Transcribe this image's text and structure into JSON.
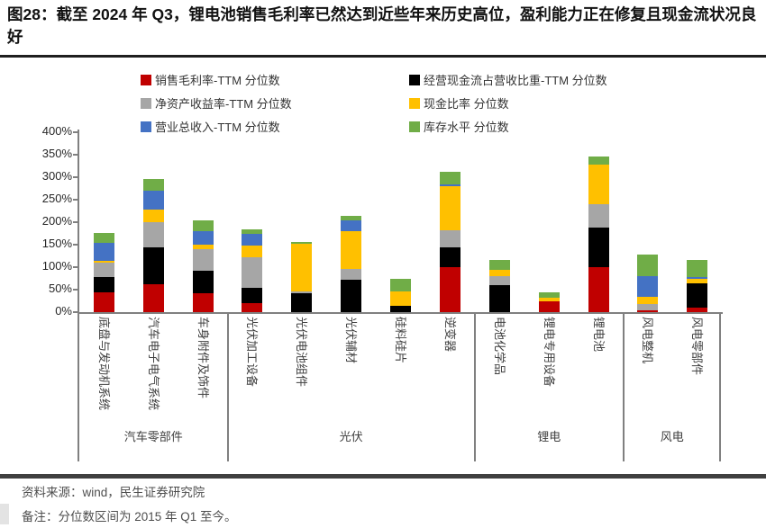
{
  "title": "图28：截至 2024 年 Q3，锂电池销售毛利率已然达到近些年来历史高位，盈利能力正在修复且现金流状况良好",
  "footer": {
    "source": "资料来源：wind，民生证券研究院",
    "note": "备注：分位数区间为 2015 年 Q1 至今。"
  },
  "chart_data": {
    "type": "bar",
    "stacked": true,
    "ylim": [
      0,
      400
    ],
    "ytick_values": [
      0,
      50,
      100,
      150,
      200,
      250,
      300,
      350,
      400
    ],
    "ytick_suffix": "%",
    "grid": false,
    "legend_position": "top",
    "categories": [
      "底盘与发动机系统",
      "汽车电子电气系统",
      "车身附件及饰件",
      "光伏加工设备",
      "光伏电池组件",
      "光伏辅材",
      "硅料硅片",
      "逆变器",
      "电池化学品",
      "锂电专用设备",
      "锂电池",
      "风电整机",
      "风电零部件"
    ],
    "groups": [
      {
        "label": "汽车零部件",
        "count": 3
      },
      {
        "label": "光伏",
        "count": 5
      },
      {
        "label": "锂电",
        "count": 3
      },
      {
        "label": "风电",
        "count": 2
      }
    ],
    "series": [
      {
        "name": "销售毛利率-TTM 分位数",
        "color": "#C00000",
        "values": [
          45,
          62,
          43,
          20,
          0,
          0,
          0,
          100,
          0,
          25,
          100,
          5,
          10
        ]
      },
      {
        "name": "经营现金流占营收比重-TTM 分位数",
        "color": "#000000",
        "values": [
          33,
          83,
          50,
          35,
          42,
          73,
          15,
          45,
          61,
          0,
          88,
          0,
          55
        ]
      },
      {
        "name": "净资产收益率-TTM 分位数",
        "color": "#A6A6A6",
        "values": [
          32,
          56,
          48,
          68,
          5,
          24,
          0,
          38,
          19,
          0,
          53,
          14,
          0
        ]
      },
      {
        "name": "现金比率 分位数",
        "color": "#FFC000",
        "values": [
          4,
          28,
          10,
          25,
          105,
          83,
          32,
          98,
          15,
          8,
          87,
          16,
          10
        ]
      },
      {
        "name": "营业总收入-TTM 分位数",
        "color": "#4472C4",
        "values": [
          41,
          42,
          29,
          27,
          0,
          25,
          0,
          4,
          0,
          0,
          0,
          45,
          3
        ]
      },
      {
        "name": "库存水平 分位数",
        "color": "#70AD47",
        "values": [
          22,
          26,
          25,
          10,
          5,
          9,
          28,
          28,
          22,
          12,
          19,
          48,
          38
        ]
      }
    ]
  }
}
